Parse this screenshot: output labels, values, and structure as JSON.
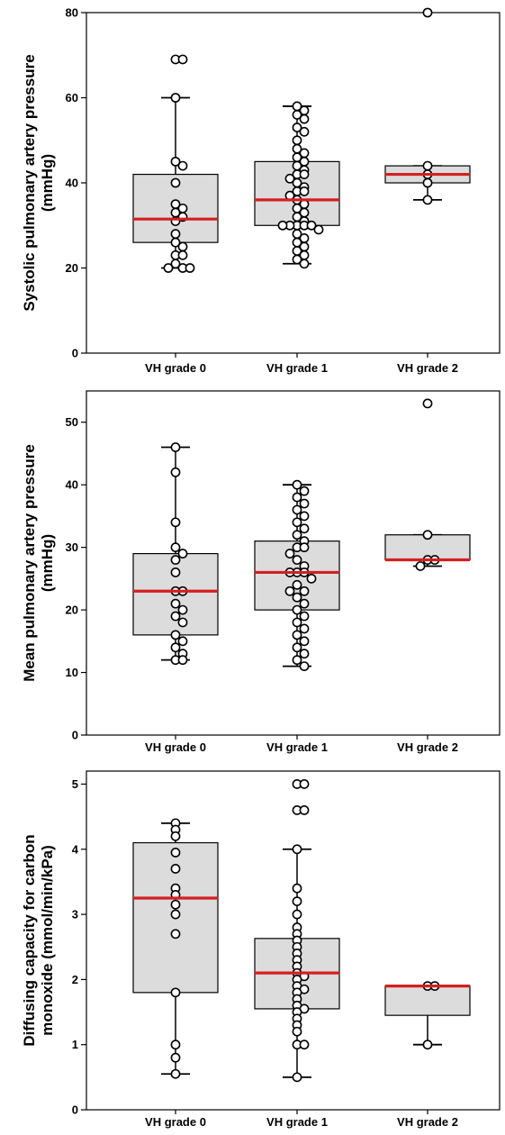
{
  "chart_data": [
    {
      "type": "boxplot",
      "ylabel_lines": [
        "Systolic pulmonary artery pressure",
        "(mmHg)"
      ],
      "ylim": [
        0,
        80
      ],
      "yticks": [
        0,
        20,
        40,
        60,
        80
      ],
      "categories": [
        "VH grade 0",
        "VH grade 1",
        "VH grade 2"
      ],
      "boxes": [
        {
          "min": 20,
          "q1": 26,
          "median": 31.5,
          "q3": 42,
          "max": 60
        },
        {
          "min": 21,
          "q1": 30,
          "median": 36,
          "q3": 45,
          "max": 58
        },
        {
          "min": 36,
          "q1": 40,
          "median": 42,
          "q3": 44,
          "max": 44
        }
      ],
      "points": [
        [
          69,
          69,
          60,
          45,
          44,
          40,
          35,
          34,
          33,
          32,
          31,
          28,
          26,
          25,
          23,
          23,
          21,
          20,
          20,
          20
        ],
        [
          58,
          57,
          56,
          55,
          53,
          52,
          50,
          48,
          47,
          46,
          45,
          44,
          43,
          42,
          42,
          41,
          40,
          39,
          38,
          38,
          37,
          36,
          35,
          34,
          33,
          32,
          31,
          30,
          30,
          30,
          30,
          30,
          29,
          28,
          27,
          26,
          25,
          24,
          23,
          22,
          21
        ],
        [
          80,
          44,
          42,
          40,
          36
        ]
      ]
    },
    {
      "type": "boxplot",
      "ylabel_lines": [
        "Mean pulmonary artery pressure",
        "(mmHg)"
      ],
      "ylim": [
        0,
        55
      ],
      "yticks": [
        0,
        10,
        20,
        30,
        40,
        50
      ],
      "categories": [
        "VH grade 0",
        "VH grade 1",
        "VH grade 2"
      ],
      "boxes": [
        {
          "min": 12,
          "q1": 16,
          "median": 23,
          "q3": 29,
          "max": 46
        },
        {
          "min": 11,
          "q1": 20,
          "median": 26,
          "q3": 31,
          "max": 40
        },
        {
          "min": 27,
          "q1": 28,
          "median": 28,
          "q3": 32,
          "max": 32
        }
      ],
      "points": [
        [
          46,
          42,
          34,
          30,
          29,
          28,
          26,
          23,
          23,
          21,
          20,
          19,
          18,
          16,
          15,
          14,
          13,
          12,
          12
        ],
        [
          40,
          39,
          38,
          37,
          36,
          35,
          34,
          33,
          32,
          31,
          30,
          30,
          29,
          28,
          27,
          26,
          26,
          26,
          25,
          24,
          23,
          23,
          22,
          21,
          20,
          19,
          18,
          17,
          16,
          15,
          14,
          13,
          12,
          11
        ],
        [
          53,
          32,
          28,
          28,
          27
        ]
      ]
    },
    {
      "type": "boxplot",
      "ylabel_lines": [
        "Diffusing capacity for carbon",
        "monoxide (mmol/min/kPa)"
      ],
      "ylim": [
        0,
        5.2
      ],
      "yticks": [
        0,
        1,
        2,
        3,
        4,
        5
      ],
      "categories": [
        "VH grade 0",
        "VH grade 1",
        "VH grade 2"
      ],
      "boxes": [
        {
          "min": 0.55,
          "q1": 1.8,
          "median": 3.25,
          "q3": 4.1,
          "max": 4.4
        },
        {
          "min": 0.5,
          "q1": 1.55,
          "median": 2.1,
          "q3": 2.63,
          "max": 4.0
        },
        {
          "min": 1.0,
          "q1": 1.45,
          "median": 1.9,
          "q3": 1.9,
          "max": 1.9
        }
      ],
      "points": [
        [
          4.4,
          4.3,
          4.2,
          3.95,
          3.7,
          3.4,
          3.3,
          3.15,
          3.0,
          2.7,
          1.8,
          1.0,
          0.8,
          0.55
        ],
        [
          5.0,
          5.0,
          4.6,
          4.6,
          4.0,
          3.4,
          3.2,
          3.0,
          2.8,
          2.7,
          2.6,
          2.5,
          2.4,
          2.3,
          2.2,
          2.1,
          2.05,
          2.0,
          1.9,
          1.85,
          1.8,
          1.7,
          1.6,
          1.55,
          1.5,
          1.4,
          1.3,
          1.2,
          1.0,
          1.0,
          0.5
        ],
        [
          1.9,
          1.9,
          1.0
        ]
      ]
    }
  ]
}
